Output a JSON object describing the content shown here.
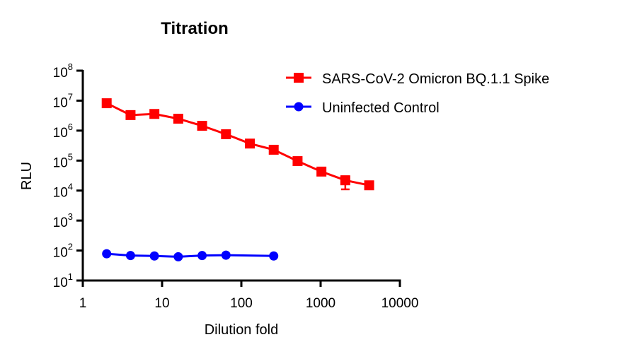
{
  "chart_data": {
    "type": "line",
    "title": "Titration",
    "xlabel": "Dilution fold",
    "ylabel": "RLU",
    "xscale": "log",
    "yscale": "log",
    "xlim": [
      1,
      10000
    ],
    "ylim": [
      10,
      100000000
    ],
    "x_ticks": [
      {
        "value": 1,
        "label": "1"
      },
      {
        "value": 10,
        "label": "10"
      },
      {
        "value": 100,
        "label": "100"
      },
      {
        "value": 1000,
        "label": "1000"
      },
      {
        "value": 10000,
        "label": "10000"
      }
    ],
    "y_ticks": [
      {
        "value": 10,
        "base": "10",
        "exp": "1"
      },
      {
        "value": 100,
        "base": "10",
        "exp": "2"
      },
      {
        "value": 1000,
        "base": "10",
        "exp": "3"
      },
      {
        "value": 10000,
        "base": "10",
        "exp": "4"
      },
      {
        "value": 100000,
        "base": "10",
        "exp": "5"
      },
      {
        "value": 1000000,
        "base": "10",
        "exp": "6"
      },
      {
        "value": 10000000,
        "base": "10",
        "exp": "7"
      },
      {
        "value": 100000000,
        "base": "10",
        "exp": "8"
      }
    ],
    "grid": false,
    "legend_position": "top-right",
    "series": [
      {
        "name": "SARS-CoV-2 Omicron BQ.1.1 Spike",
        "color": "#ff0000",
        "marker": "square",
        "x": [
          2,
          4,
          8,
          16,
          32,
          64,
          128,
          256,
          512,
          1024,
          2048,
          4096
        ],
        "y": [
          8200000,
          3300000,
          3600000,
          2500000,
          1450000,
          760000,
          370000,
          230000,
          96000,
          43000,
          22000,
          15000
        ],
        "error_low": [
          null,
          null,
          null,
          null,
          null,
          null,
          null,
          null,
          null,
          null,
          11000,
          null
        ],
        "error_high": [
          null,
          null,
          null,
          null,
          null,
          null,
          null,
          null,
          null,
          null,
          30000,
          null
        ]
      },
      {
        "name": "Uninfected Control",
        "color": "#0000ff",
        "marker": "circle",
        "x": [
          2,
          4,
          8,
          16,
          32,
          64,
          256
        ],
        "y": [
          78,
          68,
          66,
          62,
          68,
          70,
          66
        ]
      }
    ]
  }
}
